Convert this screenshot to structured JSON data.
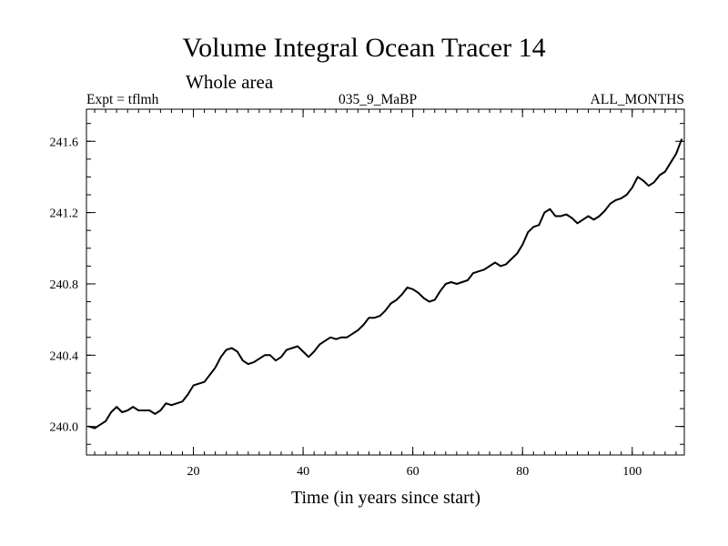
{
  "chart_data": {
    "type": "line",
    "title": "Volume Integral Ocean Tracer 14",
    "subtitle": "Whole area",
    "header_left": "Expt = tflmh",
    "header_center": "035_9_MaBP",
    "header_right": "ALL_MONTHS",
    "xlabel": "Time (in years since start)",
    "ylabel": "",
    "xlim": [
      0.5,
      109.5
    ],
    "ylim": [
      239.84,
      241.78
    ],
    "xticks": [
      20,
      40,
      60,
      80,
      100
    ],
    "xtick_labels": [
      "20",
      "40",
      "60",
      "80",
      "100"
    ],
    "yticks": [
      240.0,
      240.4,
      240.8,
      241.2,
      241.6
    ],
    "ytick_labels": [
      "240.0",
      "240.4",
      "240.8",
      "241.2",
      "241.6"
    ],
    "series": [
      {
        "name": "Volume Integral Ocean Tracer 14",
        "x": [
          1,
          2,
          3,
          4,
          5,
          6,
          7,
          8,
          9,
          10,
          11,
          12,
          13,
          14,
          15,
          16,
          17,
          18,
          19,
          20,
          21,
          22,
          23,
          24,
          25,
          26,
          27,
          28,
          29,
          30,
          31,
          32,
          33,
          34,
          35,
          36,
          37,
          38,
          39,
          40,
          41,
          42,
          43,
          44,
          45,
          46,
          47,
          48,
          49,
          50,
          51,
          52,
          53,
          54,
          55,
          56,
          57,
          58,
          59,
          60,
          61,
          62,
          63,
          64,
          65,
          66,
          67,
          68,
          69,
          70,
          71,
          72,
          73,
          74,
          75,
          76,
          77,
          78,
          79,
          80,
          81,
          82,
          83,
          84,
          85,
          86,
          87,
          88,
          89,
          90,
          91,
          92,
          93,
          94,
          95,
          96,
          97,
          98,
          99,
          100,
          101,
          102,
          103,
          104,
          105,
          106,
          107,
          108,
          109
        ],
        "values": [
          240.0,
          239.99,
          240.01,
          240.03,
          240.08,
          240.11,
          240.08,
          240.09,
          240.11,
          240.09,
          240.09,
          240.09,
          240.07,
          240.09,
          240.13,
          240.12,
          240.13,
          240.14,
          240.18,
          240.23,
          240.24,
          240.25,
          240.29,
          240.33,
          240.39,
          240.43,
          240.44,
          240.42,
          240.37,
          240.35,
          240.36,
          240.38,
          240.4,
          240.4,
          240.37,
          240.39,
          240.43,
          240.44,
          240.45,
          240.42,
          240.39,
          240.42,
          240.46,
          240.48,
          240.5,
          240.49,
          240.5,
          240.5,
          240.52,
          240.54,
          240.57,
          240.61,
          240.61,
          240.62,
          240.65,
          240.69,
          240.71,
          240.74,
          240.78,
          240.77,
          240.75,
          240.72,
          240.7,
          240.71,
          240.76,
          240.8,
          240.81,
          240.8,
          240.81,
          240.82,
          240.86,
          240.87,
          240.88,
          240.9,
          240.92,
          240.9,
          240.91,
          240.94,
          240.97,
          241.02,
          241.09,
          241.12,
          241.13,
          241.2,
          241.22,
          241.18,
          241.18,
          241.19,
          241.17,
          241.14,
          241.16,
          241.18,
          241.16,
          241.18,
          241.21,
          241.25,
          241.27,
          241.28,
          241.3,
          241.34,
          241.4,
          241.38,
          241.35,
          241.37,
          241.41,
          241.43,
          241.48,
          241.53,
          241.61
        ]
      }
    ]
  }
}
